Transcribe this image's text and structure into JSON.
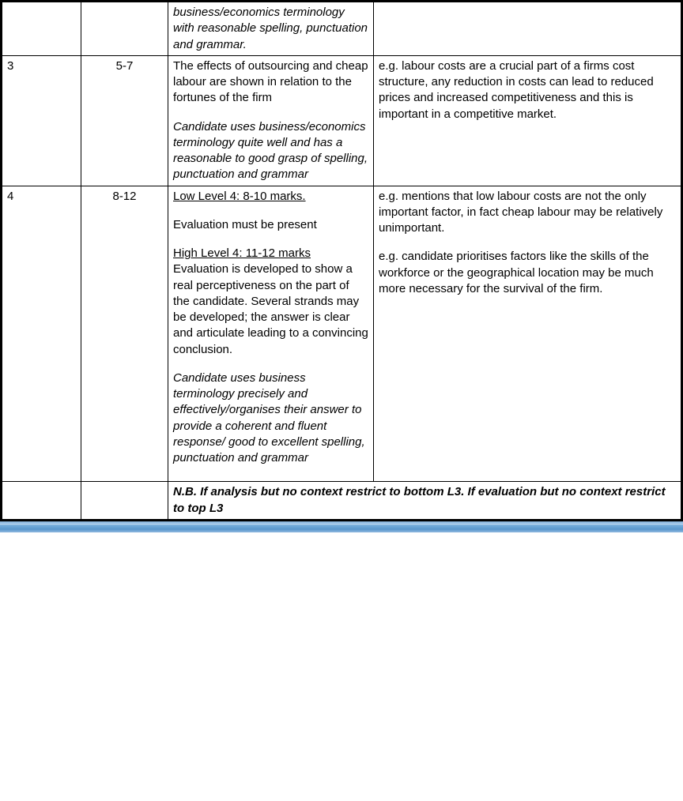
{
  "rows": [
    {
      "level": "",
      "marks": "",
      "descriptor_segments": [
        {
          "text": "business/economics terminology with reasonable spelling, punctuation and grammar.",
          "style": "italic"
        }
      ],
      "example_segments": []
    },
    {
      "level": "3",
      "marks": "5-7",
      "descriptor_segments": [
        {
          "text": "The effects of outsourcing and cheap labour are shown in relation to the fortunes of the firm",
          "style": "normal",
          "para_break": true
        },
        {
          "text": "Candidate uses business/economics terminology quite well and has a reasonable to good grasp of spelling, punctuation and grammar",
          "style": "italic"
        }
      ],
      "example_segments": [
        {
          "text": "e.g. labour costs are a crucial part of a firms cost structure, any reduction in costs can lead to reduced prices and increased competitiveness and this is important in a competitive market.",
          "style": "normal"
        }
      ]
    },
    {
      "level": "4",
      "marks": "8-12",
      "descriptor_segments": [
        {
          "text": "Low Level 4: 8-10 marks.",
          "style": "underline",
          "para_break": true
        },
        {
          "text": "Evaluation must be present",
          "style": "normal",
          "para_break": true
        },
        {
          "text": "",
          "style": "normal",
          "para_break": true
        },
        {
          "text": "High Level 4: 11-12 marks",
          "style": "underline"
        },
        {
          "text": "Evaluation is developed to show a real perceptiveness on the part of the candidate. Several strands may be developed; the answer is clear and articulate leading to a convincing conclusion.",
          "style": "normal",
          "para_break": true
        },
        {
          "text": "Candidate uses business terminology precisely and effectively/organises their answer to provide a coherent and fluent response/ good to excellent spelling, punctuation and grammar",
          "style": "italic",
          "para_break": true
        },
        {
          "text": "",
          "style": "normal"
        }
      ],
      "example_segments": [
        {
          "text": "e.g. mentions that low labour costs are not the only important factor, in fact cheap labour may be relatively unimportant.",
          "style": "normal",
          "para_break": true
        },
        {
          "text": "",
          "style": "normal",
          "para_break": true
        },
        {
          "text": "e.g. candidate prioritises factors like the skills of the workforce or the geographical location may be much more necessary for the survival of the firm.",
          "style": "normal"
        }
      ]
    }
  ],
  "footer": {
    "note": "N.B. If analysis but no context restrict to bottom L3. If evaluation but no context restrict to top L3"
  }
}
